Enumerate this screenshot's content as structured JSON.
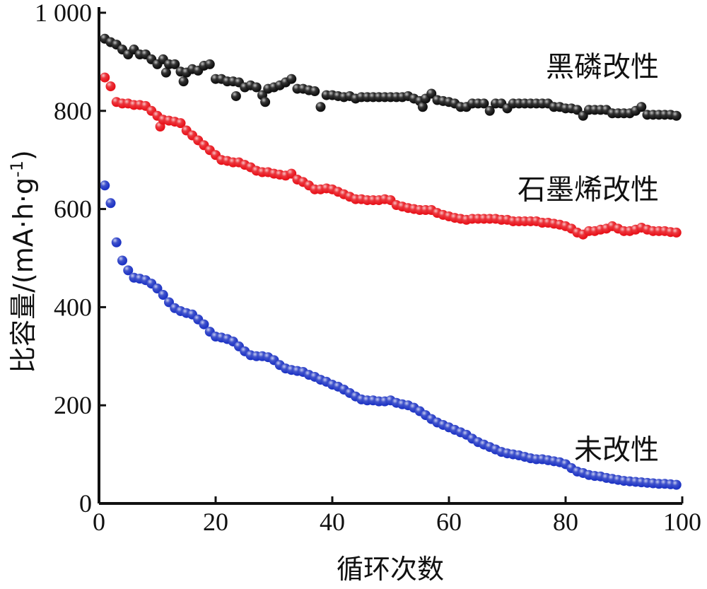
{
  "chart_data": {
    "type": "scatter",
    "xlabel": "循环次数",
    "ylabel": "比容量/(mA·h·g",
    "ylabel_sup": "-1",
    "ylabel_close": ")",
    "xlim": [
      0,
      100
    ],
    "ylim": [
      0,
      1000
    ],
    "xticks": [
      0,
      20,
      40,
      60,
      80,
      100
    ],
    "xtick_labels": [
      "0",
      "20",
      "40",
      "60",
      "80",
      "100"
    ],
    "yticks": [
      0,
      200,
      400,
      600,
      800,
      1000
    ],
    "ytick_labels": [
      "0",
      "200",
      "400",
      "600",
      "800",
      "1 000"
    ],
    "grid": false,
    "series": [
      {
        "name": "黑磷改性",
        "color": "#111111",
        "label_at": [
          96,
          870
        ],
        "points": [
          [
            1,
            947
          ],
          [
            2,
            940
          ],
          [
            3,
            935
          ],
          [
            4,
            925
          ],
          [
            5,
            915
          ],
          [
            6,
            925
          ],
          [
            7,
            915
          ],
          [
            8,
            915
          ],
          [
            9,
            905
          ],
          [
            10,
            895
          ],
          [
            11,
            905
          ],
          [
            11.5,
            878
          ],
          [
            12,
            895
          ],
          [
            13,
            895
          ],
          [
            14,
            880
          ],
          [
            14.5,
            860
          ],
          [
            15,
            878
          ],
          [
            16,
            885
          ],
          [
            17,
            882
          ],
          [
            18,
            892
          ],
          [
            19,
            895
          ],
          [
            20,
            865
          ],
          [
            21,
            865
          ],
          [
            22,
            860
          ],
          [
            23,
            860
          ],
          [
            23.5,
            830
          ],
          [
            24,
            858
          ],
          [
            25,
            848
          ],
          [
            26,
            852
          ],
          [
            27,
            848
          ],
          [
            28,
            832
          ],
          [
            28.5,
            818
          ],
          [
            29,
            845
          ],
          [
            30,
            848
          ],
          [
            31,
            852
          ],
          [
            32,
            858
          ],
          [
            33,
            865
          ],
          [
            34,
            845
          ],
          [
            35,
            845
          ],
          [
            36,
            842
          ],
          [
            37,
            840
          ],
          [
            38,
            808
          ],
          [
            39,
            832
          ],
          [
            40,
            832
          ],
          [
            41,
            830
          ],
          [
            42,
            828
          ],
          [
            43,
            830
          ],
          [
            44,
            825
          ],
          [
            45,
            828
          ],
          [
            46,
            828
          ],
          [
            47,
            828
          ],
          [
            48,
            828
          ],
          [
            49,
            828
          ],
          [
            50,
            828
          ],
          [
            51,
            828
          ],
          [
            52,
            828
          ],
          [
            53,
            830
          ],
          [
            54,
            825
          ],
          [
            55,
            820
          ],
          [
            55.5,
            808
          ],
          [
            56,
            825
          ],
          [
            57,
            835
          ],
          [
            58,
            822
          ],
          [
            59,
            820
          ],
          [
            60,
            818
          ],
          [
            61,
            815
          ],
          [
            62,
            808
          ],
          [
            63,
            808
          ],
          [
            64,
            815
          ],
          [
            65,
            815
          ],
          [
            66,
            815
          ],
          [
            67,
            800
          ],
          [
            68,
            815
          ],
          [
            69,
            815
          ],
          [
            70,
            805
          ],
          [
            71,
            815
          ],
          [
            72,
            815
          ],
          [
            73,
            815
          ],
          [
            74,
            815
          ],
          [
            75,
            815
          ],
          [
            76,
            815
          ],
          [
            77,
            815
          ],
          [
            78,
            808
          ],
          [
            79,
            808
          ],
          [
            80,
            805
          ],
          [
            81,
            805
          ],
          [
            82,
            802
          ],
          [
            83,
            790
          ],
          [
            84,
            802
          ],
          [
            85,
            802
          ],
          [
            86,
            802
          ],
          [
            87,
            802
          ],
          [
            88,
            795
          ],
          [
            89,
            795
          ],
          [
            90,
            795
          ],
          [
            91,
            795
          ],
          [
            92,
            800
          ],
          [
            93,
            808
          ],
          [
            94,
            792
          ],
          [
            95,
            792
          ],
          [
            96,
            792
          ],
          [
            97,
            792
          ],
          [
            98,
            792
          ],
          [
            99,
            790
          ]
        ]
      },
      {
        "name": "石墨烯改性",
        "color": "#e8141c",
        "label_at": [
          96,
          620
        ],
        "points": [
          [
            1,
            868
          ],
          [
            2,
            850
          ],
          [
            3,
            818
          ],
          [
            4,
            815
          ],
          [
            5,
            815
          ],
          [
            6,
            812
          ],
          [
            7,
            812
          ],
          [
            8,
            810
          ],
          [
            9,
            800
          ],
          [
            10,
            790
          ],
          [
            10.5,
            768
          ],
          [
            11,
            782
          ],
          [
            12,
            780
          ],
          [
            13,
            778
          ],
          [
            14,
            775
          ],
          [
            15,
            760
          ],
          [
            16,
            750
          ],
          [
            17,
            740
          ],
          [
            18,
            730
          ],
          [
            19,
            720
          ],
          [
            20,
            710
          ],
          [
            21,
            700
          ],
          [
            22,
            698
          ],
          [
            23,
            695
          ],
          [
            24,
            695
          ],
          [
            25,
            690
          ],
          [
            26,
            685
          ],
          [
            27,
            678
          ],
          [
            28,
            675
          ],
          [
            29,
            675
          ],
          [
            30,
            672
          ],
          [
            31,
            670
          ],
          [
            32,
            668
          ],
          [
            33,
            672
          ],
          [
            34,
            660
          ],
          [
            35,
            655
          ],
          [
            36,
            648
          ],
          [
            37,
            640
          ],
          [
            38,
            640
          ],
          [
            39,
            642
          ],
          [
            40,
            640
          ],
          [
            41,
            635
          ],
          [
            42,
            630
          ],
          [
            43,
            625
          ],
          [
            44,
            620
          ],
          [
            45,
            620
          ],
          [
            46,
            618
          ],
          [
            47,
            618
          ],
          [
            48,
            618
          ],
          [
            49,
            620
          ],
          [
            50,
            618
          ],
          [
            51,
            608
          ],
          [
            52,
            605
          ],
          [
            53,
            602
          ],
          [
            54,
            600
          ],
          [
            55,
            598
          ],
          [
            56,
            598
          ],
          [
            57,
            598
          ],
          [
            58,
            592
          ],
          [
            59,
            588
          ],
          [
            60,
            585
          ],
          [
            61,
            582
          ],
          [
            62,
            580
          ],
          [
            63,
            578
          ],
          [
            64,
            580
          ],
          [
            65,
            580
          ],
          [
            66,
            580
          ],
          [
            67,
            580
          ],
          [
            68,
            580
          ],
          [
            69,
            578
          ],
          [
            70,
            578
          ],
          [
            71,
            575
          ],
          [
            72,
            575
          ],
          [
            73,
            575
          ],
          [
            74,
            575
          ],
          [
            75,
            575
          ],
          [
            76,
            572
          ],
          [
            77,
            572
          ],
          [
            78,
            570
          ],
          [
            79,
            568
          ],
          [
            80,
            565
          ],
          [
            81,
            560
          ],
          [
            82,
            552
          ],
          [
            83,
            548
          ],
          [
            84,
            555
          ],
          [
            85,
            555
          ],
          [
            86,
            558
          ],
          [
            87,
            560
          ],
          [
            88,
            565
          ],
          [
            89,
            560
          ],
          [
            90,
            555
          ],
          [
            91,
            555
          ],
          [
            92,
            558
          ],
          [
            93,
            562
          ],
          [
            94,
            558
          ],
          [
            95,
            555
          ],
          [
            96,
            555
          ],
          [
            97,
            555
          ],
          [
            98,
            553
          ],
          [
            99,
            552
          ]
        ]
      },
      {
        "name": "未改性",
        "color": "#1f35c4",
        "label_at": [
          96,
          90
        ],
        "points": [
          [
            1,
            648
          ],
          [
            2,
            612
          ],
          [
            3,
            532
          ],
          [
            4,
            495
          ],
          [
            5,
            475
          ],
          [
            6,
            460
          ],
          [
            7,
            458
          ],
          [
            8,
            455
          ],
          [
            9,
            448
          ],
          [
            10,
            438
          ],
          [
            11,
            425
          ],
          [
            12,
            410
          ],
          [
            13,
            398
          ],
          [
            14,
            392
          ],
          [
            15,
            388
          ],
          [
            16,
            385
          ],
          [
            17,
            375
          ],
          [
            18,
            365
          ],
          [
            19,
            350
          ],
          [
            20,
            340
          ],
          [
            21,
            338
          ],
          [
            22,
            335
          ],
          [
            23,
            330
          ],
          [
            24,
            320
          ],
          [
            25,
            310
          ],
          [
            26,
            302
          ],
          [
            27,
            300
          ],
          [
            28,
            300
          ],
          [
            29,
            298
          ],
          [
            30,
            292
          ],
          [
            31,
            282
          ],
          [
            32,
            275
          ],
          [
            33,
            272
          ],
          [
            34,
            270
          ],
          [
            35,
            268
          ],
          [
            36,
            262
          ],
          [
            37,
            258
          ],
          [
            38,
            252
          ],
          [
            39,
            248
          ],
          [
            40,
            242
          ],
          [
            41,
            238
          ],
          [
            42,
            232
          ],
          [
            43,
            225
          ],
          [
            44,
            218
          ],
          [
            45,
            212
          ],
          [
            46,
            210
          ],
          [
            47,
            210
          ],
          [
            48,
            208
          ],
          [
            49,
            208
          ],
          [
            50,
            210
          ],
          [
            51,
            205
          ],
          [
            52,
            202
          ],
          [
            53,
            200
          ],
          [
            54,
            195
          ],
          [
            55,
            188
          ],
          [
            56,
            180
          ],
          [
            57,
            172
          ],
          [
            58,
            165
          ],
          [
            59,
            160
          ],
          [
            60,
            155
          ],
          [
            61,
            150
          ],
          [
            62,
            145
          ],
          [
            63,
            140
          ],
          [
            64,
            132
          ],
          [
            65,
            125
          ],
          [
            66,
            120
          ],
          [
            67,
            115
          ],
          [
            68,
            110
          ],
          [
            69,
            105
          ],
          [
            70,
            102
          ],
          [
            71,
            100
          ],
          [
            72,
            98
          ],
          [
            73,
            95
          ],
          [
            74,
            92
          ],
          [
            75,
            90
          ],
          [
            76,
            90
          ],
          [
            77,
            88
          ],
          [
            78,
            86
          ],
          [
            79,
            84
          ],
          [
            80,
            80
          ],
          [
            81,
            72
          ],
          [
            82,
            65
          ],
          [
            83,
            62
          ],
          [
            84,
            58
          ],
          [
            85,
            56
          ],
          [
            86,
            55
          ],
          [
            87,
            52
          ],
          [
            88,
            50
          ],
          [
            89,
            48
          ],
          [
            90,
            46
          ],
          [
            91,
            45
          ],
          [
            92,
            44
          ],
          [
            93,
            43
          ],
          [
            94,
            42
          ],
          [
            95,
            41
          ],
          [
            96,
            40
          ],
          [
            97,
            40
          ],
          [
            98,
            39
          ],
          [
            99,
            38
          ]
        ]
      }
    ]
  }
}
